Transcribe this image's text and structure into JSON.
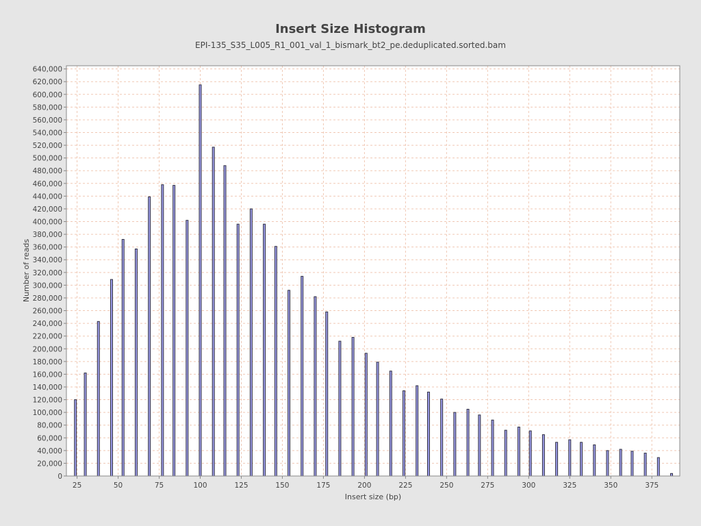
{
  "chart_data": {
    "type": "bar",
    "title": "Insert Size Histogram",
    "subtitle": "EPI-135_S35_L005_R1_001_val_1_bismark_bt2_pe.deduplicated.sorted.bam",
    "xlabel": "Insert size (bp)",
    "ylabel": "Number of reads",
    "xlim": [
      18.5,
      392
    ],
    "ylim": [
      0,
      645000
    ],
    "grid": true,
    "x_ticks": [
      25,
      50,
      75,
      100,
      125,
      150,
      175,
      200,
      225,
      250,
      275,
      300,
      325,
      350,
      375
    ],
    "x_tick_labels": [
      "25",
      "50",
      "75",
      "100",
      "125",
      "150",
      "175",
      "200",
      "225",
      "250",
      "275",
      "300",
      "325",
      "350",
      "375"
    ],
    "y_ticks": [
      0,
      20000,
      40000,
      60000,
      80000,
      100000,
      120000,
      140000,
      160000,
      180000,
      200000,
      220000,
      240000,
      260000,
      280000,
      300000,
      320000,
      340000,
      360000,
      380000,
      400000,
      420000,
      440000,
      460000,
      480000,
      500000,
      520000,
      540000,
      560000,
      580000,
      600000,
      620000,
      640000
    ],
    "y_tick_labels": [
      "0",
      "20,000",
      "40,000",
      "60,000",
      "80,000",
      "100,000",
      "120,000",
      "140,000",
      "160,000",
      "180,000",
      "200,000",
      "220,000",
      "240,000",
      "260,000",
      "280,000",
      "300,000",
      "320,000",
      "340,000",
      "360,000",
      "380,000",
      "400,000",
      "420,000",
      "440,000",
      "460,000",
      "480,000",
      "500,000",
      "520,000",
      "540,000",
      "560,000",
      "580,000",
      "600,000",
      "620,000",
      "640,000"
    ],
    "x": [
      24,
      30,
      38,
      46,
      53,
      61,
      69,
      77,
      84,
      92,
      100,
      108,
      115,
      123,
      131,
      139,
      146,
      154,
      162,
      170,
      177,
      185,
      193,
      201,
      208,
      216,
      224,
      232,
      239,
      247,
      255,
      263,
      270,
      278,
      286,
      294,
      301,
      309,
      317,
      325,
      332,
      340,
      348,
      356,
      363,
      371,
      379,
      387
    ],
    "values": [
      120000,
      162000,
      243000,
      309000,
      372000,
      357000,
      439000,
      458000,
      457000,
      402000,
      615000,
      517000,
      488000,
      396000,
      420000,
      396000,
      361000,
      292000,
      314000,
      282000,
      258000,
      212000,
      218000,
      193000,
      179000,
      165000,
      134000,
      142000,
      132000,
      121000,
      100000,
      105000,
      96000,
      88000,
      72000,
      77000,
      71000,
      65000,
      53000,
      57000,
      53000,
      49000,
      40000,
      42000,
      39000,
      36000,
      29000,
      4000
    ],
    "colors": {
      "background": "#e6e6e6",
      "plot_background": "#ffffff",
      "grid": "#f0c8b4",
      "bar_fill": "#9b9be6",
      "bar_stroke": "#333344",
      "axis": "#888888",
      "text": "#444444"
    }
  }
}
